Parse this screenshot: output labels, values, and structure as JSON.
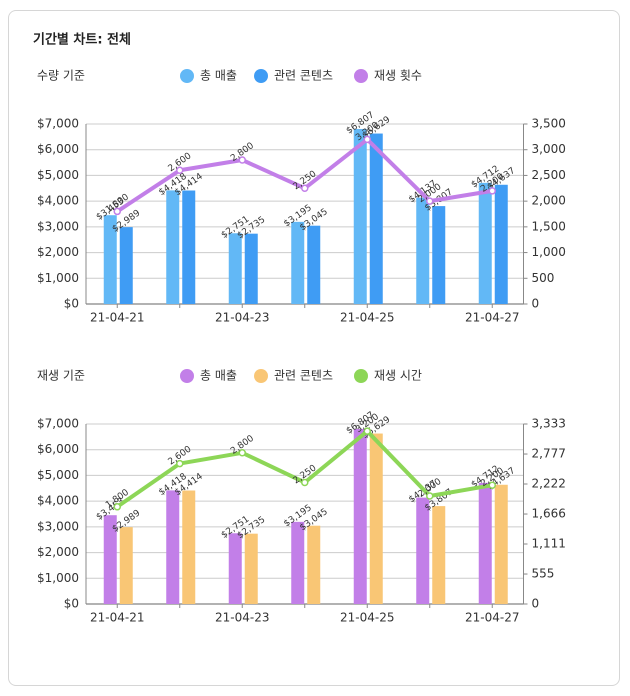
{
  "title": "기간별 차트: 전체",
  "chart_data": [
    {
      "type": "bar",
      "subtitle": "수량 기준",
      "categories": [
        "21-04-21",
        null,
        "21-04-23",
        null,
        "21-04-25",
        null,
        "21-04-27"
      ],
      "series": [
        {
          "name": "총 매출",
          "color": "#62b8f6",
          "values": [
            3453,
            4418,
            2751,
            3195,
            6807,
            4137,
            4712
          ],
          "value_labels": [
            "$3,453",
            "$4,418",
            "$2,751",
            "$3,195",
            "$6,807",
            "$4,137",
            "$4,712"
          ]
        },
        {
          "name": "관련 콘텐츠",
          "color": "#3f9cf4",
          "values": [
            2989,
            4414,
            2735,
            3045,
            6629,
            3807,
            4637
          ],
          "value_labels": [
            "$2,989",
            "$4,414",
            "$2,735",
            "$3,045",
            "$6,629",
            "$3,807",
            "$4,637"
          ]
        },
        {
          "name": "재생 횟수",
          "color": "#c27fe8",
          "type": "line",
          "axis": "y2",
          "values": [
            1800,
            2600,
            2800,
            2250,
            3200,
            2000,
            2200
          ],
          "value_labels": [
            "1,800",
            "2,600",
            "2,800",
            "2,250",
            "3,200",
            "2,000",
            "2,200"
          ]
        }
      ],
      "ylim": [
        0,
        7000
      ],
      "yticks": [
        {
          "value": 0,
          "label": "$0"
        },
        {
          "value": 1000,
          "label": "$1,000"
        },
        {
          "value": 2000,
          "label": "$2,000"
        },
        {
          "value": 3000,
          "label": "$3,000"
        },
        {
          "value": 4000,
          "label": "$4,000"
        },
        {
          "value": 5000,
          "label": "$5,000"
        },
        {
          "value": 6000,
          "label": "$6,000"
        },
        {
          "value": 7000,
          "label": "$7,000"
        }
      ],
      "y2lim": [
        0,
        3500
      ],
      "y2ticks": [
        0,
        500,
        {
          "value": 1000,
          "label": "1,000"
        },
        {
          "value": 1500,
          "label": "1,500"
        },
        {
          "value": 2000,
          "label": "2,000"
        },
        {
          "value": 2500,
          "label": "2,500"
        },
        {
          "value": 3000,
          "label": "3,000"
        },
        {
          "value": 3500,
          "label": "3,500"
        }
      ],
      "grid": true
    },
    {
      "type": "bar",
      "subtitle": "재생 기준",
      "categories": [
        "21-04-21",
        null,
        "21-04-23",
        null,
        "21-04-25",
        null,
        "21-04-27"
      ],
      "series": [
        {
          "name": "총 매출",
          "color": "#c27fe8",
          "values": [
            3453,
            4418,
            2751,
            3195,
            6807,
            4137,
            4712
          ],
          "value_labels": [
            "$3,453",
            "$4,418",
            "$2,751",
            "$3,195",
            "$6,807",
            "$4,137",
            "$4,712"
          ]
        },
        {
          "name": "관련 콘텐츠",
          "color": "#f9c675",
          "values": [
            2989,
            4414,
            2735,
            3045,
            6629,
            3807,
            4637
          ],
          "value_labels": [
            "$2,989",
            "$4,414",
            "$2,735",
            "$3,045",
            "$6,629",
            "$3,807",
            "$4,637"
          ]
        },
        {
          "name": "재생 시간",
          "color": "#8dd657",
          "type": "line",
          "axis": "y2",
          "values": [
            1800,
            2600,
            2800,
            2250,
            3200,
            2000,
            2200
          ],
          "value_labels": [
            "1,800",
            "2,600",
            "2,800",
            "2,250",
            "3,200",
            "2,000",
            "2,200"
          ]
        }
      ],
      "ylim": [
        0,
        7000
      ],
      "yticks": [
        {
          "value": 0,
          "label": "$0"
        },
        {
          "value": 1000,
          "label": "$1,000"
        },
        {
          "value": 2000,
          "label": "$2,000"
        },
        {
          "value": 3000,
          "label": "$3,000"
        },
        {
          "value": 4000,
          "label": "$4,000"
        },
        {
          "value": 5000,
          "label": "$5,000"
        },
        {
          "value": 6000,
          "label": "$6,000"
        },
        {
          "value": 7000,
          "label": "$7,000"
        }
      ],
      "y2lim": [
        0,
        3333
      ],
      "y2ticks": [
        0,
        555,
        {
          "value": 1111,
          "label": "1,111"
        },
        {
          "value": 1666,
          "label": "1,666"
        },
        {
          "value": 2222,
          "label": "2,222"
        },
        {
          "value": 2777,
          "label": "2,777"
        },
        {
          "value": 3333,
          "label": "3,333"
        }
      ],
      "grid": true
    }
  ]
}
